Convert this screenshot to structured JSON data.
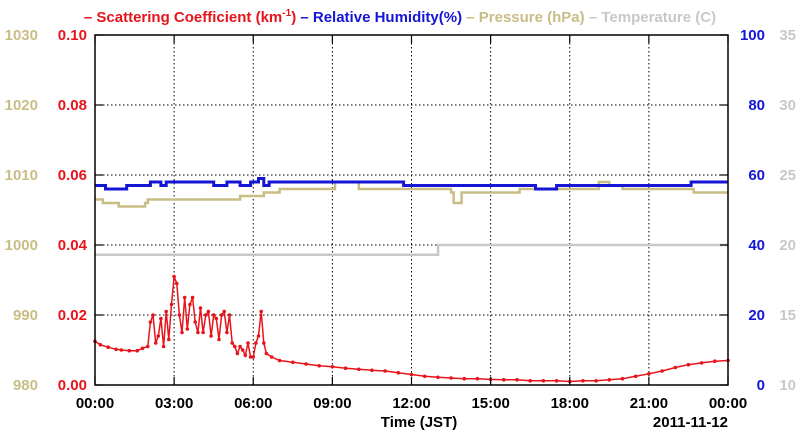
{
  "chart_data": {
    "type": "line",
    "legend": {
      "placement": "top",
      "items": [
        {
          "id": "scattering",
          "prefix": "–",
          "label": "Scattering Coefficient (km",
          "sup": "-1",
          "suffix": ")",
          "color": "#e8141b"
        },
        {
          "id": "humidity",
          "prefix": "–",
          "label": "Relative Humidity(%)",
          "sup": "",
          "suffix": "",
          "color": "#1515d6"
        },
        {
          "id": "pressure",
          "prefix": "–",
          "label": "Pressure (hPa)",
          "sup": "",
          "suffix": "",
          "color": "#c9bd86"
        },
        {
          "id": "temperature",
          "prefix": "–",
          "label": "Temperature (C)",
          "sup": "",
          "suffix": "",
          "color": "#c8c8c8"
        }
      ]
    },
    "x_axis": {
      "label": "Time (JST)",
      "date_label": "2011-11-12",
      "range_hours": [
        0,
        24
      ],
      "ticks": [
        "00:00",
        "03:00",
        "06:00",
        "09:00",
        "12:00",
        "15:00",
        "18:00",
        "21:00",
        "00:00"
      ]
    },
    "axes": {
      "pressure": {
        "range": [
          980,
          1030
        ],
        "ticks": [
          "980",
          "990",
          "1000",
          "1010",
          "1020",
          "1030"
        ],
        "color": "#c9bd86"
      },
      "scattering": {
        "range": [
          0,
          0.1
        ],
        "ticks": [
          "0.00",
          "0.02",
          "0.04",
          "0.06",
          "0.08",
          "0.10"
        ],
        "color": "#e8141b"
      },
      "humidity": {
        "range": [
          0,
          100
        ],
        "ticks": [
          "0",
          "20",
          "40",
          "60",
          "80",
          "100"
        ],
        "color": "#1515d6"
      },
      "temperature": {
        "range": [
          10,
          35
        ],
        "ticks": [
          "10",
          "15",
          "20",
          "25",
          "30",
          "35"
        ],
        "color": "#c8c8c8"
      }
    },
    "grid": true,
    "series": [
      {
        "name": "Scattering Coefficient (km-1)",
        "axis": "scattering",
        "color": "#e8141b",
        "x": [
          0.0,
          0.2,
          0.5,
          0.8,
          1.0,
          1.3,
          1.6,
          1.8,
          2.0,
          2.1,
          2.2,
          2.3,
          2.4,
          2.5,
          2.6,
          2.7,
          2.8,
          2.9,
          3.0,
          3.1,
          3.2,
          3.3,
          3.4,
          3.5,
          3.6,
          3.7,
          3.8,
          3.9,
          4.0,
          4.1,
          4.2,
          4.3,
          4.4,
          4.5,
          4.6,
          4.7,
          4.8,
          4.9,
          5.0,
          5.1,
          5.2,
          5.3,
          5.4,
          5.5,
          5.6,
          5.7,
          5.8,
          5.9,
          6.0,
          6.1,
          6.2,
          6.3,
          6.4,
          6.5,
          6.7,
          7.0,
          7.5,
          8.0,
          8.5,
          9.0,
          9.5,
          10.0,
          10.5,
          11.0,
          11.5,
          12.0,
          12.5,
          13.0,
          13.5,
          14.0,
          14.5,
          15.0,
          15.5,
          16.0,
          16.5,
          17.0,
          17.5,
          18.0,
          18.5,
          19.0,
          19.5,
          20.0,
          20.5,
          21.0,
          21.5,
          22.0,
          22.5,
          23.0,
          23.5,
          24.0
        ],
        "y": [
          0.0125,
          0.0115,
          0.0108,
          0.0102,
          0.01,
          0.0098,
          0.0098,
          0.0105,
          0.011,
          0.018,
          0.02,
          0.012,
          0.014,
          0.019,
          0.011,
          0.021,
          0.013,
          0.023,
          0.031,
          0.029,
          0.02,
          0.015,
          0.025,
          0.016,
          0.023,
          0.025,
          0.018,
          0.015,
          0.022,
          0.015,
          0.02,
          0.021,
          0.014,
          0.02,
          0.019,
          0.013,
          0.02,
          0.021,
          0.015,
          0.02,
          0.012,
          0.011,
          0.009,
          0.011,
          0.01,
          0.0085,
          0.012,
          0.008,
          0.008,
          0.012,
          0.014,
          0.021,
          0.012,
          0.009,
          0.008,
          0.007,
          0.0065,
          0.006,
          0.0055,
          0.0052,
          0.0048,
          0.0045,
          0.0042,
          0.004,
          0.0035,
          0.003,
          0.0025,
          0.0022,
          0.002,
          0.0018,
          0.0018,
          0.0016,
          0.0015,
          0.0015,
          0.0012,
          0.0012,
          0.0012,
          0.001,
          0.0012,
          0.0012,
          0.0015,
          0.0018,
          0.0025,
          0.0032,
          0.004,
          0.005,
          0.0058,
          0.0063,
          0.0068,
          0.007
        ]
      },
      {
        "name": "Relative Humidity(%)",
        "axis": "humidity",
        "color": "#1515d6",
        "x": [
          0.0,
          0.4,
          0.8,
          1.2,
          1.6,
          2.0,
          2.1,
          2.5,
          2.7,
          3.0,
          3.5,
          4.0,
          4.5,
          5.0,
          5.5,
          5.9,
          6.2,
          6.4,
          6.6,
          7.0,
          8.0,
          9.0,
          10.0,
          11.0,
          11.6,
          11.7,
          12.5,
          13.0,
          14.0,
          15.0,
          16.0,
          16.6,
          16.7,
          17.4,
          17.5,
          18.0,
          19.0,
          20.0,
          21.0,
          22.0,
          22.5,
          22.6,
          23.0,
          24.0
        ],
        "y": [
          57,
          56,
          56,
          57,
          57,
          57,
          58,
          57,
          58,
          58,
          58,
          58,
          57,
          58,
          57,
          58,
          59,
          57,
          58,
          58,
          58,
          58,
          58,
          58,
          58,
          57,
          57,
          57,
          57,
          57,
          57,
          57,
          56,
          56,
          57,
          57,
          57,
          57,
          57,
          57,
          57,
          58,
          58,
          58
        ]
      },
      {
        "name": "Pressure (hPa)",
        "axis": "pressure",
        "color": "#c9bd86",
        "x": [
          0.0,
          0.3,
          0.6,
          0.9,
          1.0,
          1.5,
          1.9,
          2.0,
          2.6,
          3.0,
          5.0,
          5.5,
          6.0,
          6.4,
          7.0,
          9.0,
          9.1,
          9.9,
          10.0,
          12.0,
          13.5,
          13.6,
          13.8,
          13.9,
          16.0,
          16.1,
          17.0,
          18.0,
          19.0,
          19.1,
          19.4,
          19.5,
          20.0,
          22.0,
          22.6,
          22.7,
          23.0,
          24.0
        ],
        "y": [
          1006.5,
          1006.0,
          1006.0,
          1005.5,
          1005.5,
          1005.5,
          1006.0,
          1006.5,
          1006.5,
          1006.5,
          1006.5,
          1007.0,
          1007.0,
          1007.5,
          1008.0,
          1008.0,
          1009.0,
          1009.0,
          1008.0,
          1008.0,
          1007.5,
          1006.0,
          1006.0,
          1007.5,
          1007.5,
          1008.0,
          1008.0,
          1008.0,
          1008.0,
          1009.0,
          1009.0,
          1008.5,
          1008.0,
          1008.0,
          1008.0,
          1007.5,
          1007.5,
          1007.5
        ]
      },
      {
        "name": "Temperature (C)",
        "axis": "temperature",
        "color": "#c8c8c8",
        "x": [
          0.0,
          13.0,
          13.01,
          24.0
        ],
        "y": [
          19.3,
          19.3,
          20.0,
          20.0
        ]
      }
    ]
  }
}
